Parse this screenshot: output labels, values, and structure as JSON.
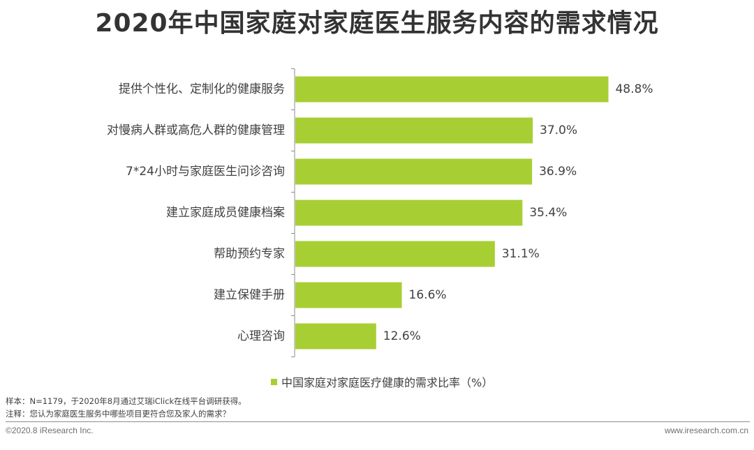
{
  "title": "2020年中国家庭对家庭医生服务内容的需求情况",
  "accent_color": "#a7cf34",
  "chart_data": {
    "type": "bar",
    "orientation": "horizontal",
    "categories": [
      "提供个性化、定制化的健康服务",
      "对慢病人群或高危人群的健康管理",
      "7*24小时与家庭医生问诊咨询",
      "建立家庭成员健康档案",
      "帮助预约专家",
      "建立保健手册",
      "心理咨询"
    ],
    "series": [
      {
        "name": "中国家庭对家庭医疗健康的需求比率（%）",
        "values": [
          48.8,
          37.0,
          36.9,
          35.4,
          31.1,
          16.6,
          12.6
        ],
        "labels": [
          "48.8%",
          "37.0%",
          "36.9%",
          "35.4%",
          "31.1%",
          "16.6%",
          "12.6%"
        ]
      }
    ],
    "xlim": [
      0,
      50
    ],
    "grid": false,
    "legend_position": "bottom"
  },
  "notes": {
    "sample": "样本：N=1179，于2020年8月通过艾瑞iClick在线平台调研获得。",
    "annotation": "注释：您认为家庭医生服务中哪些项目更符合您及家人的需求？"
  },
  "footer": {
    "copyright": "©2020.8 iResearch Inc.",
    "website": "www.iresearch.com.cn"
  }
}
